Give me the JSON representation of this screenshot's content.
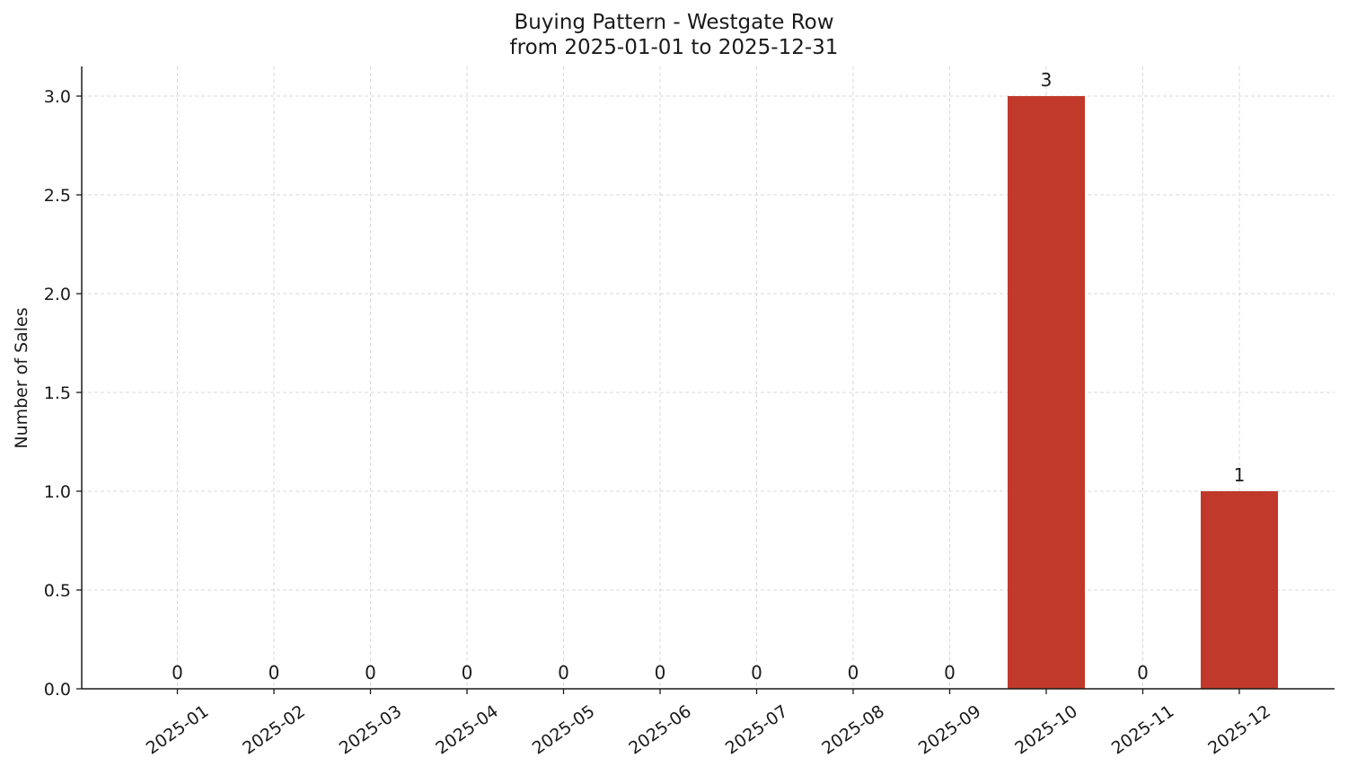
{
  "chart_data": {
    "type": "bar",
    "title": "Buying Pattern - Westgate Row",
    "subtitle": "from 2025-01-01 to 2025-12-31",
    "xlabel": "",
    "ylabel": "Number of Sales",
    "categories": [
      "2025-01",
      "2025-02",
      "2025-03",
      "2025-04",
      "2025-05",
      "2025-06",
      "2025-07",
      "2025-08",
      "2025-09",
      "2025-10",
      "2025-11",
      "2025-12"
    ],
    "values": [
      0,
      0,
      0,
      0,
      0,
      0,
      0,
      0,
      0,
      3,
      0,
      1
    ],
    "data_labels": [
      "0",
      "0",
      "0",
      "0",
      "0",
      "0",
      "0",
      "0",
      "0",
      "3",
      "0",
      "1"
    ],
    "ylim": [
      0,
      3.15
    ],
    "yticks": [
      0.0,
      0.5,
      1.0,
      1.5,
      2.0,
      2.5,
      3.0
    ],
    "ytick_labels": [
      "0.0",
      "0.5",
      "1.0",
      "1.5",
      "2.0",
      "2.5",
      "3.0"
    ],
    "grid": true,
    "bar_color": "#c0392b",
    "grid_color": "#d9d9d9"
  }
}
